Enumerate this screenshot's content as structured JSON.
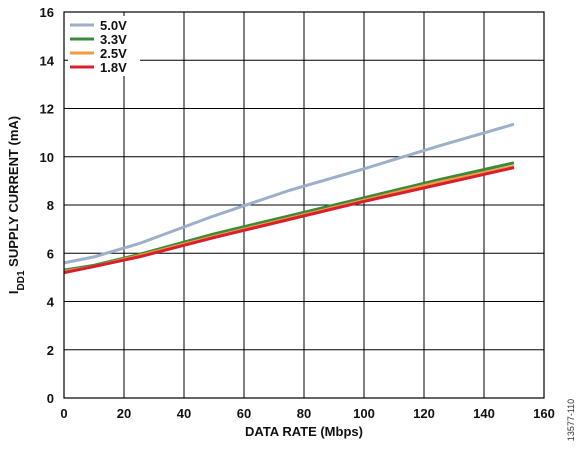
{
  "chart_data": {
    "type": "line",
    "title": "",
    "xlabel": "DATA RATE (Mbps)",
    "ylabel": {
      "prefix": "I",
      "subscript": "DD1",
      "suffix": " SUPPLY CURRENT (mA)"
    },
    "xlim": [
      0,
      160
    ],
    "ylim": [
      0,
      16
    ],
    "xticks": [
      "0",
      "20",
      "40",
      "60",
      "80",
      "100",
      "120",
      "140",
      "160"
    ],
    "yticks": [
      "0",
      "2",
      "4",
      "6",
      "8",
      "10",
      "12",
      "14",
      "16"
    ],
    "grid": true,
    "legend_position": "top-left",
    "figure_id": "13577-110",
    "series": [
      {
        "name": "5.0V",
        "color": "#9db0c9",
        "x": [
          0,
          10,
          25,
          50,
          75,
          100,
          125,
          150
        ],
        "y": [
          5.6,
          5.85,
          6.4,
          7.55,
          8.6,
          9.5,
          10.45,
          11.35
        ]
      },
      {
        "name": "3.3V",
        "color": "#3a8a3a",
        "x": [
          0,
          10,
          25,
          50,
          75,
          100,
          125,
          150
        ],
        "y": [
          5.3,
          5.5,
          5.95,
          6.8,
          7.55,
          8.3,
          9.05,
          9.75
        ]
      },
      {
        "name": "2.5V",
        "color": "#f39a3c",
        "x": [
          0,
          10,
          25,
          50,
          75,
          100,
          125,
          150
        ],
        "y": [
          5.25,
          5.45,
          5.9,
          6.7,
          7.45,
          8.2,
          8.95,
          9.6
        ]
      },
      {
        "name": "1.8V",
        "color": "#d81f30",
        "x": [
          0,
          10,
          25,
          50,
          75,
          100,
          125,
          150
        ],
        "y": [
          5.2,
          5.45,
          5.85,
          6.65,
          7.4,
          8.15,
          8.85,
          9.55
        ]
      }
    ]
  }
}
